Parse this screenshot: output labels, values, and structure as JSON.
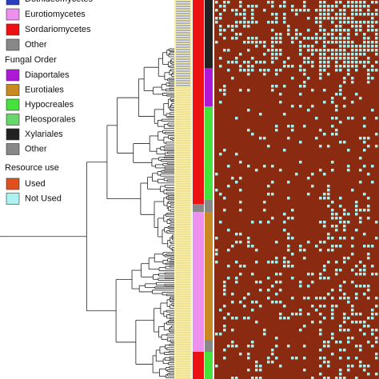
{
  "legend": {
    "class_items": [
      {
        "label": "Dothideomycetes",
        "color": "#2a3fc0"
      },
      {
        "label": "Eurotiomycetes",
        "color": "#ee90ee"
      },
      {
        "label": "Sordariomycetes",
        "color": "#ee1111"
      },
      {
        "label": "Other",
        "color": "#888888"
      }
    ],
    "order_title": "Fungal Order",
    "order_items": [
      {
        "label": "Diaportales",
        "color": "#b018d8"
      },
      {
        "label": "Eurotiales",
        "color": "#c98a22"
      },
      {
        "label": "Hypocreales",
        "color": "#44e23a"
      },
      {
        "label": "Pleosporales",
        "color": "#66d86a"
      },
      {
        "label": "Xylariales",
        "color": "#222222"
      },
      {
        "label": "Other",
        "color": "#888888"
      }
    ],
    "resource_title": "Resource use",
    "resource_items": [
      {
        "label": "Used",
        "color": "#e0501e"
      },
      {
        "label": "Not Used",
        "color": "#aef2f0"
      }
    ]
  }
}
